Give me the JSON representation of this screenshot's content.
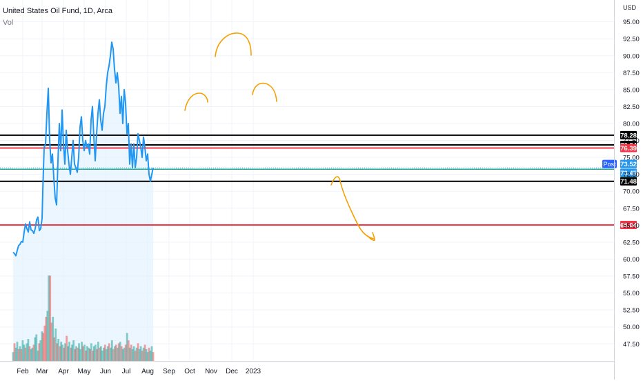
{
  "header": {
    "symbol_title": "United States Oil Fund, 1D, Arca",
    "volume_label": "Vol",
    "currency": "USD"
  },
  "badges": {
    "post_label": "Post"
  },
  "colors": {
    "price_line": "#2196f3",
    "area_fill": "#e3f2fd",
    "annotation": "#f59f00",
    "vol_up": "#26a69a",
    "vol_down": "#ef5350",
    "black_level": "#000000",
    "red_level": "#f23645",
    "green_level": "#22ab94"
  },
  "chart_data": {
    "type": "line",
    "title": "United States Oil Fund, 1D, Arca",
    "x_axis_labels": [
      "Feb",
      "Mar",
      "Apr",
      "May",
      "Jun",
      "Jul",
      "Aug",
      "Sep",
      "Oct",
      "Nov",
      "Dec",
      "2023"
    ],
    "y_ticks": [
      47.5,
      50,
      52.5,
      55,
      57.5,
      60,
      62.5,
      65,
      67.5,
      70,
      72.5,
      75,
      77.5,
      80,
      82.5,
      85,
      87.5,
      90,
      92.5,
      95
    ],
    "y_range": [
      46,
      97
    ],
    "grid": true,
    "series": [
      {
        "name": "Price",
        "points": [
          [
            "2022-01-18",
            61.0
          ],
          [
            "2022-01-20",
            60.8
          ],
          [
            "2022-01-22",
            60.5
          ],
          [
            "2022-01-24",
            61.3
          ],
          [
            "2022-01-26",
            62.0
          ],
          [
            "2022-01-28",
            62.2
          ],
          [
            "2022-01-30",
            62.6
          ],
          [
            "2022-02-01",
            62.5
          ],
          [
            "2022-02-03",
            64.0
          ],
          [
            "2022-02-05",
            65.2
          ],
          [
            "2022-02-07",
            64.5
          ],
          [
            "2022-02-09",
            64.0
          ],
          [
            "2022-02-11",
            65.5
          ],
          [
            "2022-02-13",
            64.3
          ],
          [
            "2022-02-15",
            64.2
          ],
          [
            "2022-02-17",
            63.8
          ],
          [
            "2022-02-19",
            64.5
          ],
          [
            "2022-02-21",
            65.8
          ],
          [
            "2022-02-23",
            66.2
          ],
          [
            "2022-02-25",
            64.2
          ],
          [
            "2022-02-27",
            64.5
          ],
          [
            "2022-02-29",
            66.0
          ],
          [
            "2022-03-02",
            70.0
          ],
          [
            "2022-03-04",
            76.5
          ],
          [
            "2022-03-06",
            77.0
          ],
          [
            "2022-03-08",
            81.5
          ],
          [
            "2022-03-10",
            85.2
          ],
          [
            "2022-03-12",
            77.5
          ],
          [
            "2022-03-14",
            74.2
          ],
          [
            "2022-03-16",
            75.5
          ],
          [
            "2022-03-18",
            72.0
          ],
          [
            "2022-03-20",
            69.0
          ],
          [
            "2022-03-22",
            68.0
          ],
          [
            "2022-03-24",
            74.5
          ],
          [
            "2022-03-26",
            80.0
          ],
          [
            "2022-03-28",
            76.0
          ],
          [
            "2022-03-30",
            82.0
          ],
          [
            "2022-04-01",
            77.0
          ],
          [
            "2022-04-03",
            74.0
          ],
          [
            "2022-04-05",
            79.0
          ],
          [
            "2022-04-07",
            76.0
          ],
          [
            "2022-04-09",
            74.0
          ],
          [
            "2022-04-11",
            72.5
          ],
          [
            "2022-04-13",
            75.0
          ],
          [
            "2022-04-15",
            77.5
          ],
          [
            "2022-04-17",
            74.0
          ],
          [
            "2022-04-19",
            73.5
          ],
          [
            "2022-04-21",
            72.8
          ],
          [
            "2022-04-23",
            75.0
          ],
          [
            "2022-04-25",
            79.5
          ],
          [
            "2022-04-27",
            81.0
          ],
          [
            "2022-04-29",
            77.5
          ],
          [
            "2022-05-01",
            76.0
          ],
          [
            "2022-05-03",
            77.5
          ],
          [
            "2022-05-05",
            76.5
          ],
          [
            "2022-05-07",
            77.0
          ],
          [
            "2022-05-09",
            75.5
          ],
          [
            "2022-05-11",
            80.5
          ],
          [
            "2022-05-13",
            82.5
          ],
          [
            "2022-05-15",
            78.0
          ],
          [
            "2022-05-17",
            74.5
          ],
          [
            "2022-05-19",
            78.5
          ],
          [
            "2022-05-21",
            81.5
          ],
          [
            "2022-05-23",
            83.5
          ],
          [
            "2022-05-25",
            80.5
          ],
          [
            "2022-05-27",
            79.0
          ],
          [
            "2022-05-29",
            81.5
          ],
          [
            "2022-05-31",
            82.5
          ],
          [
            "2022-06-02",
            85.5
          ],
          [
            "2022-06-04",
            87.5
          ],
          [
            "2022-06-06",
            88.5
          ],
          [
            "2022-06-08",
            90.0
          ],
          [
            "2022-06-10",
            92.0
          ],
          [
            "2022-06-12",
            91.0
          ],
          [
            "2022-06-14",
            88.0
          ],
          [
            "2022-06-16",
            86.0
          ],
          [
            "2022-06-18",
            87.5
          ],
          [
            "2022-06-20",
            85.5
          ],
          [
            "2022-06-22",
            81.5
          ],
          [
            "2022-06-24",
            84.0
          ],
          [
            "2022-06-26",
            80.0
          ],
          [
            "2022-06-28",
            85.0
          ],
          [
            "2022-06-30",
            83.0
          ],
          [
            "2022-07-02",
            78.5
          ],
          [
            "2022-07-04",
            80.0
          ],
          [
            "2022-07-06",
            74.0
          ],
          [
            "2022-07-08",
            77.0
          ],
          [
            "2022-07-10",
            73.5
          ],
          [
            "2022-07-12",
            77.0
          ],
          [
            "2022-07-14",
            73.5
          ],
          [
            "2022-07-16",
            75.0
          ],
          [
            "2022-07-18",
            78.5
          ],
          [
            "2022-07-20",
            77.5
          ],
          [
            "2022-07-22",
            76.5
          ],
          [
            "2022-07-24",
            75.0
          ],
          [
            "2022-07-26",
            78.0
          ],
          [
            "2022-07-28",
            76.5
          ],
          [
            "2022-07-30",
            74.5
          ],
          [
            "2022-08-01",
            75.5
          ],
          [
            "2022-08-03",
            72.5
          ],
          [
            "2022-08-05",
            71.5
          ],
          [
            "2022-08-07",
            72.5
          ],
          [
            "2022-08-09",
            73.5
          ]
        ]
      }
    ],
    "volume_series": {
      "name": "Vol",
      "bars": [
        [
          6,
          1
        ],
        [
          12,
          0
        ],
        [
          9,
          1
        ],
        [
          13,
          1
        ],
        [
          8,
          0
        ],
        [
          10,
          1
        ],
        [
          8,
          0
        ],
        [
          14,
          1
        ],
        [
          11,
          1
        ],
        [
          9,
          0
        ],
        [
          12,
          1
        ],
        [
          15,
          1
        ],
        [
          10,
          0
        ],
        [
          8,
          1
        ],
        [
          9,
          1
        ],
        [
          11,
          0
        ],
        [
          16,
          1
        ],
        [
          18,
          1
        ],
        [
          7,
          1
        ],
        [
          12,
          0
        ],
        [
          14,
          1
        ],
        [
          20,
          1
        ],
        [
          19,
          0
        ],
        [
          24,
          0
        ],
        [
          30,
          0
        ],
        [
          34,
          1
        ],
        [
          58,
          1
        ],
        [
          58,
          0
        ],
        [
          26,
          0
        ],
        [
          30,
          1
        ],
        [
          16,
          0
        ],
        [
          22,
          1
        ],
        [
          12,
          0
        ],
        [
          15,
          1
        ],
        [
          10,
          0
        ],
        [
          13,
          1
        ],
        [
          11,
          1
        ],
        [
          9,
          0
        ],
        [
          12,
          1
        ],
        [
          17,
          0
        ],
        [
          10,
          1
        ],
        [
          13,
          1
        ],
        [
          9,
          0
        ],
        [
          11,
          1
        ],
        [
          14,
          1
        ],
        [
          8,
          0
        ],
        [
          10,
          1
        ],
        [
          9,
          0
        ],
        [
          12,
          1
        ],
        [
          8,
          1
        ],
        [
          13,
          1
        ],
        [
          10,
          0
        ],
        [
          11,
          1
        ],
        [
          7,
          0
        ],
        [
          10,
          1
        ],
        [
          9,
          1
        ],
        [
          8,
          0
        ],
        [
          12,
          1
        ],
        [
          7,
          0
        ],
        [
          10,
          1
        ],
        [
          11,
          1
        ],
        [
          8,
          0
        ],
        [
          13,
          1
        ],
        [
          9,
          0
        ],
        [
          10,
          1
        ],
        [
          7,
          1
        ],
        [
          9,
          1
        ],
        [
          11,
          0
        ],
        [
          8,
          1
        ],
        [
          10,
          1
        ],
        [
          12,
          0
        ],
        [
          9,
          1
        ],
        [
          14,
          1
        ],
        [
          8,
          0
        ],
        [
          10,
          1
        ],
        [
          11,
          0
        ],
        [
          9,
          1
        ],
        [
          12,
          0
        ],
        [
          13,
          1
        ],
        [
          10,
          0
        ],
        [
          8,
          1
        ],
        [
          9,
          1
        ],
        [
          11,
          0
        ],
        [
          19,
          1
        ],
        [
          14,
          0
        ],
        [
          9,
          1
        ],
        [
          11,
          0
        ],
        [
          8,
          1
        ],
        [
          10,
          1
        ],
        [
          7,
          0
        ],
        [
          9,
          1
        ],
        [
          12,
          0
        ],
        [
          8,
          1
        ],
        [
          10,
          1
        ],
        [
          7,
          0
        ],
        [
          9,
          1
        ],
        [
          11,
          0
        ],
        [
          8,
          1
        ],
        [
          6,
          1
        ],
        [
          9,
          0
        ],
        [
          7,
          1
        ],
        [
          10,
          1
        ],
        [
          6,
          0
        ]
      ]
    },
    "price_levels": [
      {
        "value": 78.28,
        "color": "black"
      },
      {
        "value": 76.84,
        "color": "black"
      },
      {
        "value": 76.39,
        "color": "red"
      },
      {
        "value": 73.52,
        "color": "blue"
      },
      {
        "value": 73.45,
        "color": "blue"
      },
      {
        "value": 73.26,
        "color": "green"
      },
      {
        "value": 71.48,
        "color": "black"
      },
      {
        "value": 65.04,
        "color": "red"
      }
    ],
    "level_labels": [
      "78.28",
      "76.84",
      "76.39",
      "73.52",
      "73.45",
      "73.26",
      "71.48",
      "65.04"
    ]
  }
}
